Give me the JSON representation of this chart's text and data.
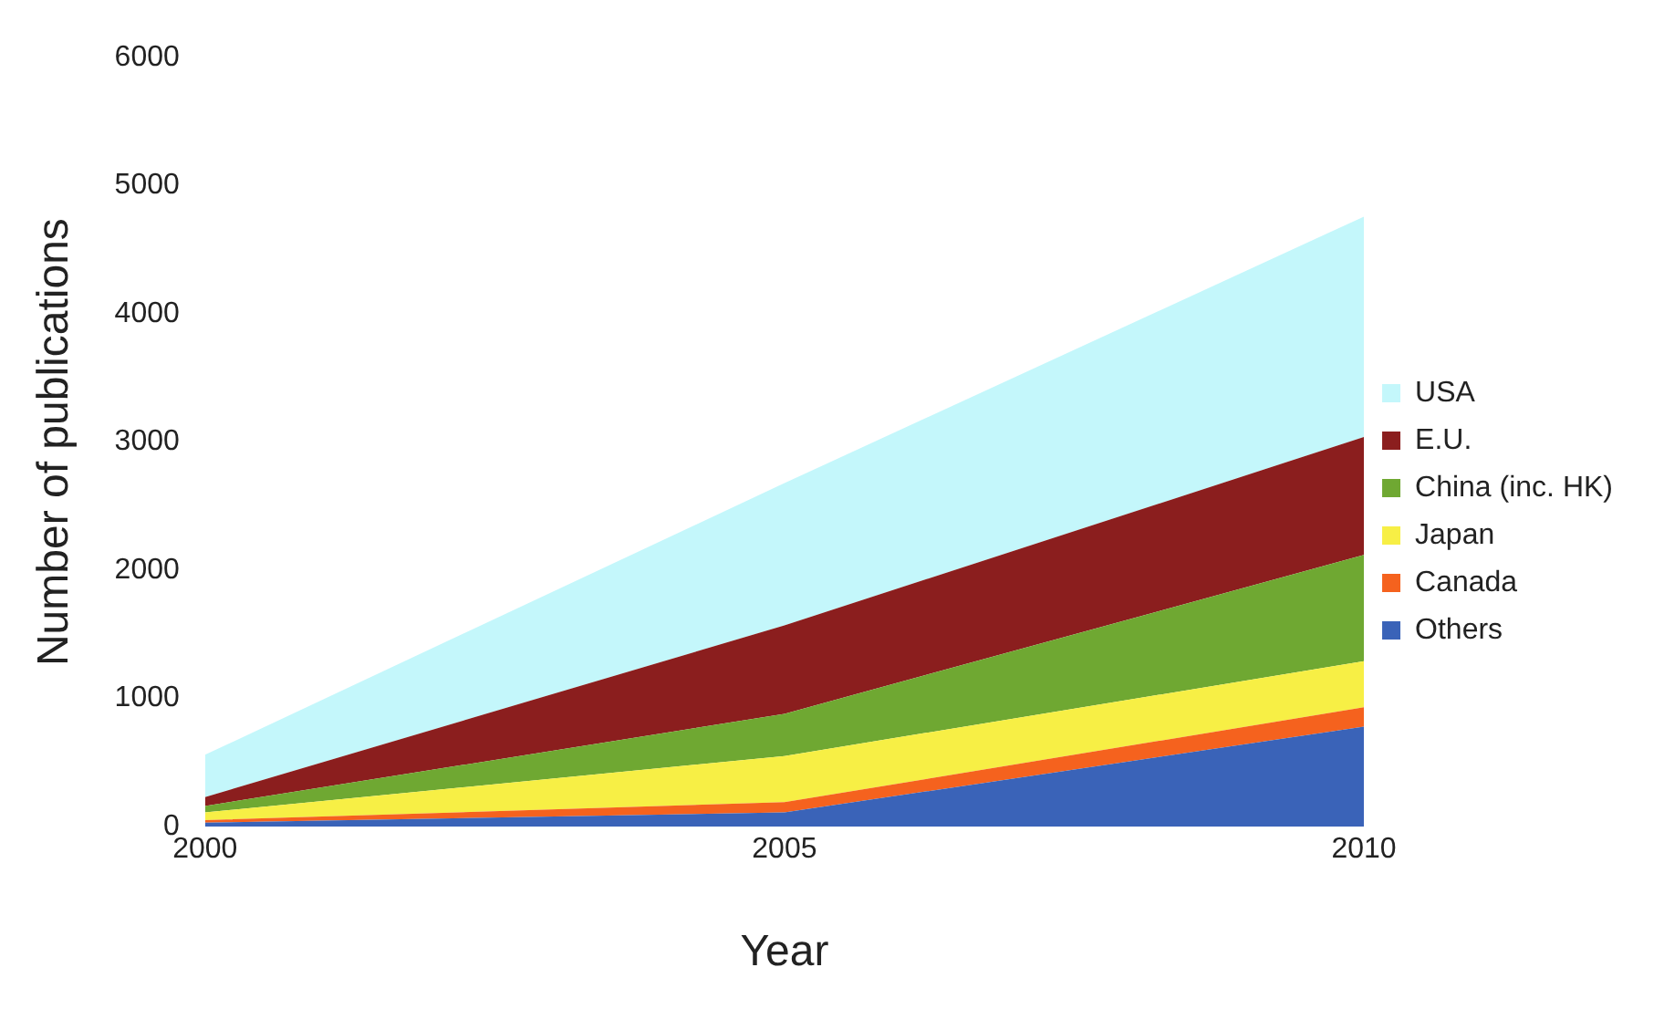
{
  "chart_data": {
    "type": "area",
    "stacked": true,
    "xlabel": "Year",
    "ylabel": "Number of publications",
    "x": [
      2000,
      2005,
      2010
    ],
    "xlim": [
      2000,
      2010
    ],
    "xticks": [
      2000,
      2005,
      2010
    ],
    "ylim": [
      0,
      6000
    ],
    "yticks": [
      0,
      1000,
      2000,
      3000,
      4000,
      5000,
      6000
    ],
    "grid": false,
    "legend": "right",
    "series": [
      {
        "name": "Others",
        "color": "#3a63b8",
        "values": [
          30,
          110,
          780
        ]
      },
      {
        "name": "Canada",
        "color": "#f5621e",
        "values": [
          20,
          80,
          150
        ]
      },
      {
        "name": "Japan",
        "color": "#f7ef45",
        "values": [
          60,
          360,
          360
        ]
      },
      {
        "name": "China (inc. HK)",
        "color": "#6fa832",
        "values": [
          50,
          330,
          830
        ]
      },
      {
        "name": "E.U.",
        "color": "#8b1e1e",
        "values": [
          70,
          690,
          920
        ]
      },
      {
        "name": "USA",
        "color": "#c4f7fb",
        "values": [
          330,
          1110,
          1720
        ]
      }
    ]
  }
}
